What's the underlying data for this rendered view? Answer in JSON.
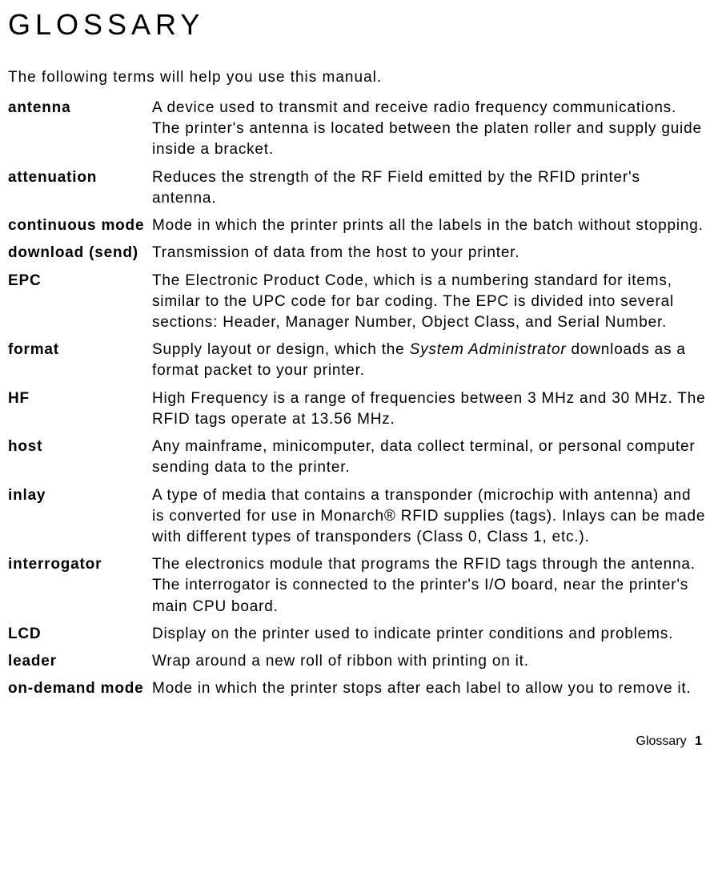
{
  "title": "GLOSSARY",
  "intro": "The following terms will help you use this manual.",
  "entries": [
    {
      "term": "antenna",
      "def": "A device used to transmit and receive radio frequency communications.  The printer's antenna is located between the platen roller and supply guide inside a bracket."
    },
    {
      "term": "attenuation",
      "def": "Reduces the strength of the RF Field emitted by the RFID printer's antenna."
    },
    {
      "term": "continuous mode",
      "def": "Mode in which the printer prints all the labels in the batch without stopping."
    },
    {
      "term": "download (send)",
      "def": "Transmission of data from the host to your printer."
    },
    {
      "term": "EPC",
      "def": "The Electronic Product Code, which is a numbering standard for items, similar to the UPC code for bar coding.  The EPC is divided into several sections:  Header, Manager Number, Object Class, and Serial Number."
    },
    {
      "term": "format",
      "def_pre": "Supply layout or design, which the ",
      "def_italic": "System Administrator",
      "def_post": " downloads as a format packet to your printer."
    },
    {
      "term": "HF",
      "def": "High Frequency is a range of frequencies between 3 MHz and 30 MHz.  The RFID tags operate at 13.56 MHz."
    },
    {
      "term": "host",
      "def": "Any mainframe, minicomputer, data collect terminal, or personal computer sending data to the printer."
    },
    {
      "term": "inlay",
      "def": "A type of media that contains a transponder (microchip with antenna) and is converted for use in Monarch® RFID supplies (tags).  Inlays can be made with different types of transponders (Class 0, Class 1, etc.)."
    },
    {
      "term": "interrogator",
      "def": "The electronics module that programs the RFID tags through the antenna.  The interrogator is connected to the printer's I/O board, near the printer's main CPU board."
    },
    {
      "term": "LCD",
      "def": "Display on the printer used to indicate printer conditions and problems."
    },
    {
      "term": "leader",
      "def": "Wrap around a new roll of ribbon with printing on it."
    },
    {
      "term": "on-demand mode",
      "def": "Mode in which the printer stops after each label to allow you to remove it."
    }
  ],
  "footer_label": "Glossary",
  "footer_page": "1"
}
